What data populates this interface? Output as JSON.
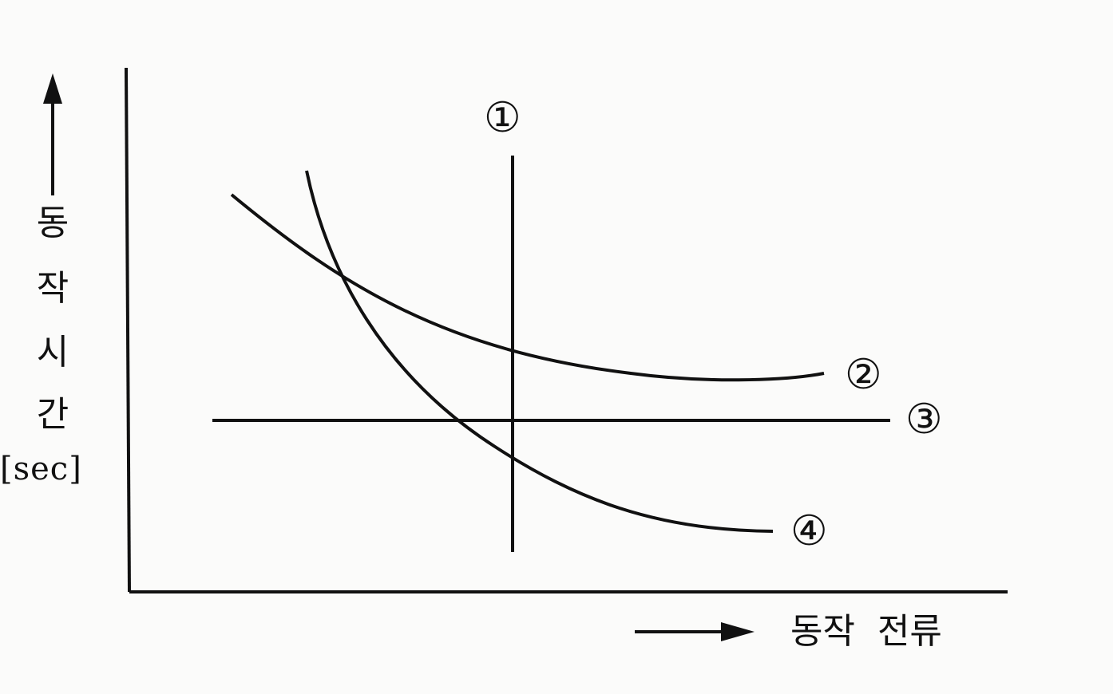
{
  "axes": {
    "y_label_chars": [
      "동",
      "작",
      "시",
      "간"
    ],
    "y_unit": "[sec]",
    "x_label": "동작 전류"
  },
  "curves": [
    {
      "id": "1",
      "label": "①"
    },
    {
      "id": "2",
      "label": "②"
    },
    {
      "id": "3",
      "label": "③"
    },
    {
      "id": "4",
      "label": "④"
    }
  ],
  "colors": {
    "line": "#111111",
    "background": "#fbfbfa"
  }
}
